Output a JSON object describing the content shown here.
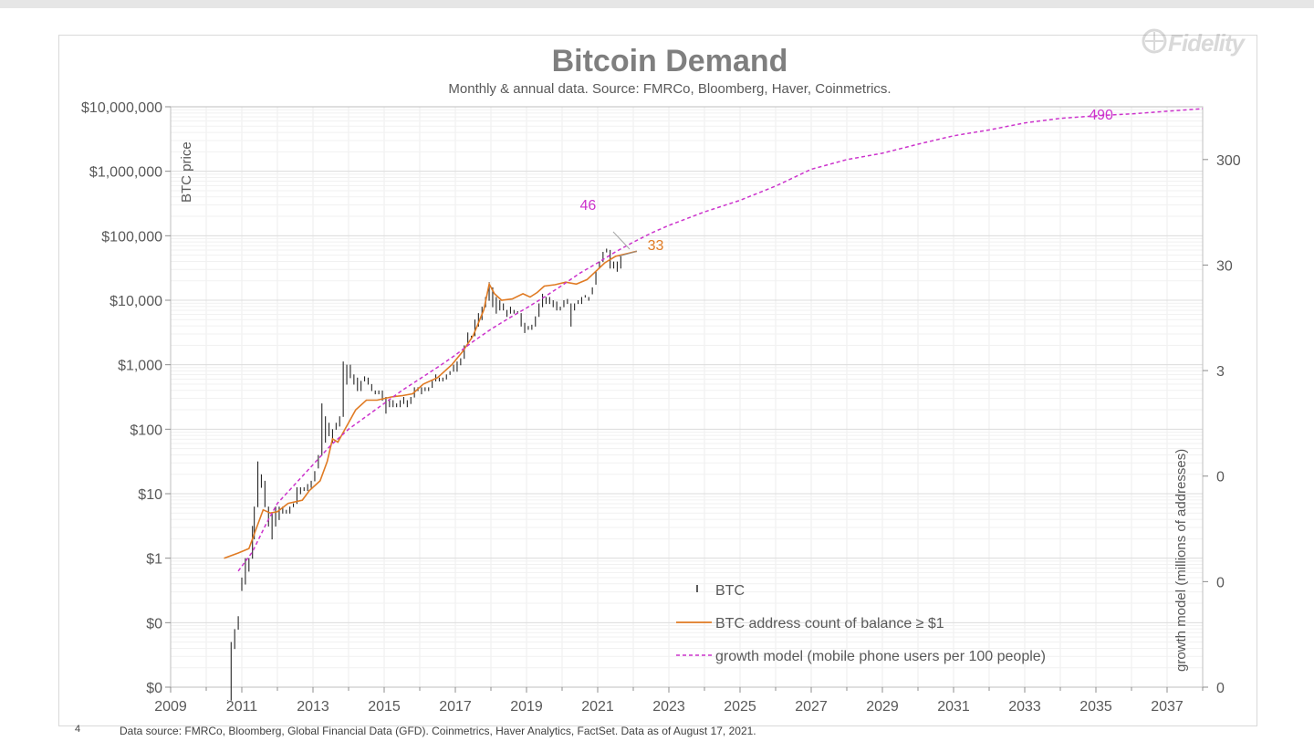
{
  "slide": {
    "page_number": "4",
    "footnote": "Data source: FMRCo, Bloomberg, Global Financial Data (GFD). Coinmetrics, Haver Analytics, FactSet.  Data as of August 17, 2021.",
    "brand": "Fidelity"
  },
  "chart_data": {
    "type": "line",
    "title": "Bitcoin Demand",
    "subtitle": "Monthly & annual data.  Source: FMRCo, Bloomberg, Haver, Coinmetrics.",
    "ylabel": "BTC price",
    "y2label": "growth model (millions of addresses)",
    "xlim": [
      2009,
      2038
    ],
    "x_ticks": [
      2009,
      2011,
      2013,
      2015,
      2017,
      2019,
      2021,
      2023,
      2025,
      2027,
      2029,
      2031,
      2033,
      2035,
      2037
    ],
    "x_tick_labels": [
      "2009",
      "2011",
      "2013",
      "2015",
      "2017",
      "2019",
      "2021",
      "2023",
      "2025",
      "2027",
      "2029",
      "2031",
      "2033",
      "2035",
      "2037"
    ],
    "y_scale": "log",
    "y_ticks_log10": [
      -2,
      -1,
      0,
      1,
      2,
      3,
      4,
      5,
      6,
      7
    ],
    "y_tick_labels": [
      "$0",
      "$0",
      "$1",
      "$10",
      "$100",
      "$1,000",
      "$10,000",
      "$100,000",
      "$1,000,000",
      "$10,000,000"
    ],
    "y2_scale": "log",
    "y2_ticks_log10": [
      -2,
      -1,
      0,
      1,
      2,
      3
    ],
    "y2_tick_labels": [
      "0",
      "0",
      "0",
      "3",
      "30",
      "300"
    ],
    "grid": true,
    "legend_position": "bottom-center",
    "legend": [
      {
        "key": "btc",
        "label": "BTC",
        "color": "#262626",
        "style": "bar"
      },
      {
        "key": "address",
        "label": "BTC address count of balance ≥ $1",
        "color": "#e07b24",
        "style": "solid"
      },
      {
        "key": "growth",
        "label": "growth model (mobile phone users per 100 people)",
        "color": "#cc33cc",
        "style": "dashed"
      }
    ],
    "annotations": [
      {
        "text": "46",
        "x": 2020.5,
        "y_log10": 5.4,
        "color": "#cc33cc"
      },
      {
        "text": "33",
        "x": 2022.4,
        "y_log10": 4.78,
        "color": "#e07b24"
      },
      {
        "text": "490",
        "x": 2034.8,
        "y_log10": 6.8,
        "color": "#cc33cc"
      }
    ],
    "series": [
      {
        "name": "BTC",
        "type": "hilo",
        "color": "#262626",
        "points": [
          [
            2010.6,
            -2.2,
            -2.2
          ],
          [
            2010.7,
            -2.2,
            -1.3
          ],
          [
            2010.8,
            -1.4,
            -1.1
          ],
          [
            2010.9,
            -1.1,
            -0.9
          ],
          [
            2011.0,
            -0.5,
            -0.3
          ],
          [
            2011.1,
            -0.4,
            0.0
          ],
          [
            2011.2,
            -0.2,
            0.0
          ],
          [
            2011.3,
            0.0,
            0.5
          ],
          [
            2011.35,
            0.3,
            0.8
          ],
          [
            2011.45,
            0.8,
            1.5
          ],
          [
            2011.55,
            1.1,
            1.3
          ],
          [
            2011.65,
            0.8,
            1.2
          ],
          [
            2011.75,
            0.5,
            0.8
          ],
          [
            2011.85,
            0.3,
            0.7
          ],
          [
            2011.95,
            0.5,
            0.8
          ],
          [
            2012.05,
            0.6,
            0.8
          ],
          [
            2012.15,
            0.7,
            0.8
          ],
          [
            2012.25,
            0.7,
            0.75
          ],
          [
            2012.35,
            0.7,
            0.8
          ],
          [
            2012.45,
            0.8,
            0.85
          ],
          [
            2012.55,
            0.85,
            1.1
          ],
          [
            2012.65,
            1.0,
            1.1
          ],
          [
            2012.75,
            1.05,
            1.1
          ],
          [
            2012.85,
            1.05,
            1.15
          ],
          [
            2012.95,
            1.1,
            1.2
          ],
          [
            2013.05,
            1.2,
            1.35
          ],
          [
            2013.15,
            1.4,
            1.6
          ],
          [
            2013.25,
            1.6,
            2.4
          ],
          [
            2013.35,
            1.8,
            2.2
          ],
          [
            2013.45,
            1.9,
            2.1
          ],
          [
            2013.55,
            1.8,
            2.0
          ],
          [
            2013.65,
            2.0,
            2.1
          ],
          [
            2013.75,
            2.05,
            2.2
          ],
          [
            2013.85,
            2.2,
            3.05
          ],
          [
            2013.95,
            2.7,
            3.0
          ],
          [
            2014.05,
            2.8,
            3.0
          ],
          [
            2014.15,
            2.7,
            2.85
          ],
          [
            2014.25,
            2.6,
            2.8
          ],
          [
            2014.35,
            2.6,
            2.75
          ],
          [
            2014.45,
            2.75,
            2.82
          ],
          [
            2014.55,
            2.7,
            2.8
          ],
          [
            2014.65,
            2.6,
            2.7
          ],
          [
            2014.75,
            2.55,
            2.6
          ],
          [
            2014.85,
            2.55,
            2.6
          ],
          [
            2014.95,
            2.45,
            2.6
          ],
          [
            2015.05,
            2.25,
            2.5
          ],
          [
            2015.15,
            2.35,
            2.45
          ],
          [
            2015.25,
            2.35,
            2.45
          ],
          [
            2015.35,
            2.35,
            2.4
          ],
          [
            2015.45,
            2.35,
            2.45
          ],
          [
            2015.55,
            2.4,
            2.5
          ],
          [
            2015.65,
            2.35,
            2.45
          ],
          [
            2015.75,
            2.4,
            2.5
          ],
          [
            2015.85,
            2.5,
            2.65
          ],
          [
            2015.95,
            2.6,
            2.65
          ],
          [
            2016.05,
            2.55,
            2.65
          ],
          [
            2016.15,
            2.6,
            2.65
          ],
          [
            2016.25,
            2.6,
            2.65
          ],
          [
            2016.35,
            2.65,
            2.75
          ],
          [
            2016.45,
            2.75,
            2.85
          ],
          [
            2016.55,
            2.75,
            2.8
          ],
          [
            2016.65,
            2.75,
            2.8
          ],
          [
            2016.75,
            2.78,
            2.85
          ],
          [
            2016.85,
            2.85,
            2.9
          ],
          [
            2016.95,
            2.9,
            3.0
          ],
          [
            2017.05,
            2.9,
            3.05
          ],
          [
            2017.15,
            3.0,
            3.1
          ],
          [
            2017.25,
            3.1,
            3.3
          ],
          [
            2017.35,
            3.3,
            3.5
          ],
          [
            2017.45,
            3.4,
            3.45
          ],
          [
            2017.55,
            3.45,
            3.7
          ],
          [
            2017.65,
            3.6,
            3.8
          ],
          [
            2017.75,
            3.7,
            3.9
          ],
          [
            2017.85,
            3.9,
            4.05
          ],
          [
            2017.95,
            4.0,
            4.28
          ],
          [
            2018.05,
            3.9,
            4.2
          ],
          [
            2018.15,
            3.8,
            4.05
          ],
          [
            2018.25,
            3.85,
            4.0
          ],
          [
            2018.35,
            3.85,
            3.95
          ],
          [
            2018.45,
            3.75,
            3.85
          ],
          [
            2018.55,
            3.8,
            3.9
          ],
          [
            2018.65,
            3.8,
            3.85
          ],
          [
            2018.75,
            3.8,
            3.83
          ],
          [
            2018.85,
            3.6,
            3.8
          ],
          [
            2018.95,
            3.5,
            3.65
          ],
          [
            2019.05,
            3.55,
            3.6
          ],
          [
            2019.15,
            3.55,
            3.62
          ],
          [
            2019.25,
            3.6,
            3.75
          ],
          [
            2019.35,
            3.75,
            3.95
          ],
          [
            2019.45,
            3.9,
            4.1
          ],
          [
            2019.55,
            3.95,
            4.05
          ],
          [
            2019.65,
            3.95,
            4.05
          ],
          [
            2019.75,
            3.9,
            4.0
          ],
          [
            2019.85,
            3.85,
            3.98
          ],
          [
            2019.95,
            3.85,
            3.9
          ],
          [
            2020.05,
            3.9,
            4.0
          ],
          [
            2020.15,
            3.95,
            4.02
          ],
          [
            2020.25,
            3.6,
            3.95
          ],
          [
            2020.35,
            3.85,
            3.95
          ],
          [
            2020.45,
            3.95,
            4.0
          ],
          [
            2020.55,
            3.95,
            4.05
          ],
          [
            2020.65,
            4.05,
            4.08
          ],
          [
            2020.75,
            4.0,
            4.05
          ],
          [
            2020.85,
            4.1,
            4.2
          ],
          [
            2020.95,
            4.25,
            4.45
          ],
          [
            2021.05,
            4.5,
            4.6
          ],
          [
            2021.15,
            4.6,
            4.75
          ],
          [
            2021.25,
            4.75,
            4.8
          ],
          [
            2021.35,
            4.5,
            4.78
          ],
          [
            2021.45,
            4.5,
            4.6
          ],
          [
            2021.55,
            4.45,
            4.6
          ],
          [
            2021.65,
            4.5,
            4.68
          ]
        ]
      },
      {
        "name": "BTC address count of balance ≥ $1",
        "type": "line",
        "color": "#e07b24",
        "points": [
          [
            2010.5,
            0.0
          ],
          [
            2010.9,
            0.08
          ],
          [
            2011.2,
            0.15
          ],
          [
            2011.4,
            0.45
          ],
          [
            2011.6,
            0.75
          ],
          [
            2011.8,
            0.7
          ],
          [
            2012.0,
            0.72
          ],
          [
            2012.3,
            0.85
          ],
          [
            2012.7,
            0.9
          ],
          [
            2012.9,
            1.05
          ],
          [
            2013.2,
            1.2
          ],
          [
            2013.4,
            1.5
          ],
          [
            2013.55,
            1.85
          ],
          [
            2013.7,
            1.8
          ],
          [
            2013.9,
            2.0
          ],
          [
            2014.2,
            2.3
          ],
          [
            2014.5,
            2.45
          ],
          [
            2014.8,
            2.45
          ],
          [
            2015.2,
            2.5
          ],
          [
            2015.5,
            2.52
          ],
          [
            2015.8,
            2.55
          ],
          [
            2016.1,
            2.7
          ],
          [
            2016.5,
            2.8
          ],
          [
            2016.9,
            3.0
          ],
          [
            2017.2,
            3.2
          ],
          [
            2017.5,
            3.45
          ],
          [
            2017.8,
            3.85
          ],
          [
            2017.95,
            4.25
          ],
          [
            2018.1,
            4.1
          ],
          [
            2018.3,
            4.0
          ],
          [
            2018.6,
            4.02
          ],
          [
            2018.9,
            4.1
          ],
          [
            2019.1,
            4.05
          ],
          [
            2019.3,
            4.12
          ],
          [
            2019.5,
            4.22
          ],
          [
            2019.8,
            4.24
          ],
          [
            2020.1,
            4.28
          ],
          [
            2020.4,
            4.25
          ],
          [
            2020.7,
            4.32
          ],
          [
            2020.95,
            4.45
          ],
          [
            2021.2,
            4.58
          ],
          [
            2021.5,
            4.68
          ],
          [
            2021.8,
            4.72
          ],
          [
            2022.1,
            4.76
          ]
        ]
      },
      {
        "name": "growth model (mobile phone users per 100 people)",
        "type": "line",
        "dashed": true,
        "color": "#cc33cc",
        "points": [
          [
            2010.9,
            -0.2
          ],
          [
            2011.3,
            0.1
          ],
          [
            2011.7,
            0.55
          ],
          [
            2012.0,
            0.85
          ],
          [
            2012.5,
            1.15
          ],
          [
            2013.0,
            1.45
          ],
          [
            2013.5,
            1.75
          ],
          [
            2014.0,
            2.0
          ],
          [
            2014.5,
            2.2
          ],
          [
            2015.0,
            2.4
          ],
          [
            2015.5,
            2.6
          ],
          [
            2016.0,
            2.78
          ],
          [
            2016.5,
            2.96
          ],
          [
            2017.0,
            3.15
          ],
          [
            2017.5,
            3.36
          ],
          [
            2018.0,
            3.55
          ],
          [
            2018.5,
            3.72
          ],
          [
            2019.0,
            3.88
          ],
          [
            2019.5,
            4.05
          ],
          [
            2020.0,
            4.23
          ],
          [
            2020.5,
            4.42
          ],
          [
            2021.0,
            4.58
          ],
          [
            2021.5,
            4.75
          ],
          [
            2022.0,
            4.9
          ],
          [
            2022.5,
            5.04
          ],
          [
            2023.0,
            5.16
          ],
          [
            2024.0,
            5.37
          ],
          [
            2025.0,
            5.55
          ],
          [
            2026.0,
            5.77
          ],
          [
            2027.0,
            6.03
          ],
          [
            2028.0,
            6.18
          ],
          [
            2029.0,
            6.28
          ],
          [
            2030.0,
            6.42
          ],
          [
            2031.0,
            6.55
          ],
          [
            2032.0,
            6.64
          ],
          [
            2033.0,
            6.75
          ],
          [
            2034.0,
            6.82
          ],
          [
            2035.0,
            6.86
          ],
          [
            2036.0,
            6.89
          ],
          [
            2037.0,
            6.93
          ],
          [
            2038.0,
            6.97
          ]
        ]
      }
    ]
  }
}
